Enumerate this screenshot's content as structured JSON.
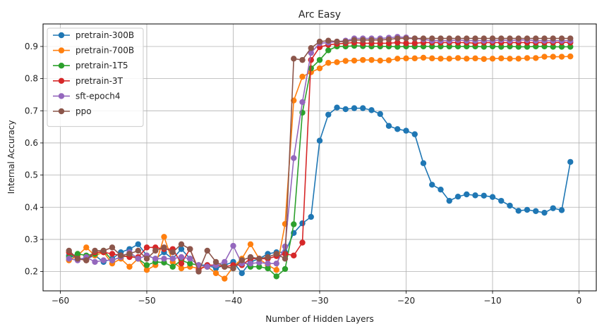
{
  "chart_data": {
    "type": "line",
    "title": "Arc Easy",
    "xlabel": "Number of Hidden Layers",
    "ylabel": "Internal Accuracy",
    "xlim": [
      -62,
      2
    ],
    "ylim": [
      0.14,
      0.97
    ],
    "xticks": [
      -60,
      -50,
      -40,
      -30,
      -20,
      -10,
      0
    ],
    "xtick_labels": [
      "−60",
      "−50",
      "−40",
      "−30",
      "−20",
      "−10",
      "0"
    ],
    "yticks": [
      0.2,
      0.3,
      0.4,
      0.5,
      0.6,
      0.7,
      0.8,
      0.9
    ],
    "ytick_labels": [
      "0.2",
      "0.3",
      "0.4",
      "0.5",
      "0.6",
      "0.7",
      "0.8",
      "0.9"
    ],
    "grid": true,
    "legend_position": "top-left",
    "x": [
      -59,
      -58,
      -57,
      -56,
      -55,
      -54,
      -53,
      -52,
      -51,
      -50,
      -49,
      -48,
      -47,
      -46,
      -45,
      -44,
      -43,
      -42,
      -41,
      -40,
      -39,
      -38,
      -37,
      -36,
      -35,
      -34,
      -33,
      -32,
      -31,
      -30,
      -29,
      -28,
      -27,
      -26,
      -25,
      -24,
      -23,
      -22,
      -21,
      -20,
      -19,
      -18,
      -17,
      -16,
      -15,
      -14,
      -13,
      -12,
      -11,
      -10,
      -9,
      -8,
      -7,
      -6,
      -5,
      -4,
      -3,
      -2,
      -1
    ],
    "series": [
      {
        "name": "pretrain-300B",
        "color": "#1f77b4",
        "values": [
          0.25,
          0.24,
          0.24,
          0.25,
          0.23,
          0.24,
          0.26,
          0.27,
          0.285,
          0.25,
          0.24,
          0.26,
          0.24,
          0.27,
          0.24,
          0.22,
          0.22,
          0.21,
          0.22,
          0.23,
          0.195,
          0.23,
          0.24,
          0.255,
          0.26,
          0.26,
          0.32,
          0.35,
          0.37,
          0.607,
          0.688,
          0.71,
          0.705,
          0.708,
          0.708,
          0.702,
          0.69,
          0.653,
          0.643,
          0.638,
          0.627,
          0.537,
          0.47,
          0.455,
          0.42,
          0.433,
          0.44,
          0.437,
          0.436,
          0.432,
          0.42,
          0.405,
          0.389,
          0.392,
          0.388,
          0.383,
          0.397,
          0.391,
          0.541
        ]
      },
      {
        "name": "pretrain-700B",
        "color": "#ff7f0e",
        "values": [
          0.235,
          0.25,
          0.275,
          0.25,
          0.26,
          0.225,
          0.24,
          0.215,
          0.24,
          0.205,
          0.22,
          0.308,
          0.23,
          0.21,
          0.215,
          0.21,
          0.215,
          0.195,
          0.178,
          0.215,
          0.24,
          0.285,
          0.24,
          0.22,
          0.205,
          0.348,
          0.732,
          0.806,
          0.82,
          0.832,
          0.849,
          0.851,
          0.855,
          0.856,
          0.858,
          0.858,
          0.856,
          0.857,
          0.862,
          0.863,
          0.863,
          0.865,
          0.863,
          0.862,
          0.862,
          0.864,
          0.862,
          0.863,
          0.861,
          0.862,
          0.863,
          0.862,
          0.862,
          0.864,
          0.864,
          0.868,
          0.868,
          0.868,
          0.869
        ]
      },
      {
        "name": "pretrain-1T5",
        "color": "#2ca02c",
        "values": [
          0.245,
          0.255,
          0.25,
          0.255,
          0.265,
          0.235,
          0.245,
          0.25,
          0.24,
          0.22,
          0.23,
          0.228,
          0.215,
          0.235,
          0.225,
          0.22,
          0.215,
          0.22,
          0.215,
          0.21,
          0.235,
          0.215,
          0.215,
          0.21,
          0.185,
          0.208,
          0.347,
          0.694,
          0.832,
          0.858,
          0.888,
          0.9,
          0.9,
          0.902,
          0.901,
          0.9,
          0.9,
          0.9,
          0.899,
          0.9,
          0.9,
          0.9,
          0.9,
          0.9,
          0.9,
          0.9,
          0.9,
          0.9,
          0.899,
          0.9,
          0.899,
          0.9,
          0.899,
          0.899,
          0.9,
          0.9,
          0.899,
          0.899,
          0.899
        ]
      },
      {
        "name": "pretrain-3T",
        "color": "#d62728",
        "values": [
          0.26,
          0.24,
          0.235,
          0.26,
          0.26,
          0.255,
          0.25,
          0.245,
          0.245,
          0.275,
          0.275,
          0.27,
          0.27,
          0.225,
          0.27,
          0.205,
          0.22,
          0.22,
          0.215,
          0.22,
          0.22,
          0.24,
          0.24,
          0.24,
          0.248,
          0.255,
          0.25,
          0.29,
          0.858,
          0.898,
          0.905,
          0.908,
          0.91,
          0.912,
          0.91,
          0.91,
          0.91,
          0.91,
          0.912,
          0.91,
          0.91,
          0.912,
          0.912,
          0.912,
          0.912,
          0.912,
          0.912,
          0.91,
          0.912,
          0.912,
          0.912,
          0.912,
          0.912,
          0.912,
          0.912,
          0.912,
          0.912,
          0.913,
          0.912
        ]
      },
      {
        "name": "sft-epoch4",
        "color": "#9467bd",
        "values": [
          0.24,
          0.235,
          0.245,
          0.23,
          0.235,
          0.235,
          0.245,
          0.26,
          0.24,
          0.25,
          0.24,
          0.24,
          0.24,
          0.245,
          0.24,
          0.22,
          0.215,
          0.22,
          0.23,
          0.28,
          0.225,
          0.225,
          0.228,
          0.225,
          0.225,
          0.278,
          0.553,
          0.727,
          0.88,
          0.91,
          0.912,
          0.915,
          0.918,
          0.925,
          0.925,
          0.925,
          0.925,
          0.927,
          0.93,
          0.928,
          0.925,
          0.922,
          0.918,
          0.918,
          0.918,
          0.92,
          0.918,
          0.918,
          0.918,
          0.918,
          0.92,
          0.918,
          0.92,
          0.92,
          0.918,
          0.918,
          0.918,
          0.918,
          0.918
        ]
      },
      {
        "name": "ppo",
        "color": "#8c564b",
        "values": [
          0.265,
          0.24,
          0.235,
          0.265,
          0.265,
          0.275,
          0.25,
          0.255,
          0.265,
          0.24,
          0.265,
          0.275,
          0.26,
          0.285,
          0.27,
          0.2,
          0.265,
          0.23,
          0.215,
          0.21,
          0.235,
          0.245,
          0.24,
          0.245,
          0.255,
          0.24,
          0.862,
          0.858,
          0.895,
          0.915,
          0.918,
          0.915,
          0.915,
          0.92,
          0.92,
          0.92,
          0.92,
          0.922,
          0.925,
          0.925,
          0.925,
          0.925,
          0.925,
          0.925,
          0.925,
          0.925,
          0.925,
          0.925,
          0.925,
          0.925,
          0.925,
          0.925,
          0.925,
          0.925,
          0.925,
          0.925,
          0.925,
          0.925,
          0.925
        ]
      }
    ]
  }
}
